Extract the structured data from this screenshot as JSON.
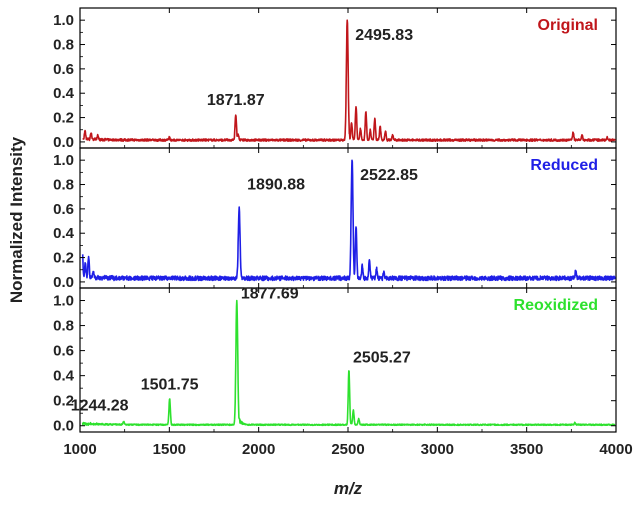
{
  "chart_data": {
    "type": "line",
    "xlabel": "m/z",
    "ylabel": "Normalized Intensity",
    "xlim": [
      1000,
      4000
    ],
    "x_ticks": [
      1000,
      1500,
      2000,
      2500,
      3000,
      3500,
      4000
    ],
    "ylim": [
      -0.05,
      1.1
    ],
    "y_ticks": [
      0.0,
      0.2,
      0.4,
      0.6,
      0.8,
      1.0
    ],
    "y_tick_labels": [
      "0.0",
      "0.2",
      "0.4",
      "0.6",
      "0.8",
      "1.0"
    ],
    "grid": false,
    "legend": "none",
    "panels": [
      {
        "name": "Original",
        "color": "#c0161b",
        "label_position": "top-right",
        "baseline": 0.015,
        "peaks": [
          {
            "mz": 1028,
            "intensity": 0.08
          },
          {
            "mz": 1062,
            "intensity": 0.07
          },
          {
            "mz": 1100,
            "intensity": 0.05
          },
          {
            "mz": 1500,
            "intensity": 0.03
          },
          {
            "mz": 1871.87,
            "intensity": 0.22,
            "label": "1871.87"
          },
          {
            "mz": 1885,
            "intensity": 0.06
          },
          {
            "mz": 2495.83,
            "intensity": 1.0,
            "label": "2495.83"
          },
          {
            "mz": 2520,
            "intensity": 0.15
          },
          {
            "mz": 2545,
            "intensity": 0.28
          },
          {
            "mz": 2570,
            "intensity": 0.1
          },
          {
            "mz": 2600,
            "intensity": 0.24
          },
          {
            "mz": 2625,
            "intensity": 0.09
          },
          {
            "mz": 2650,
            "intensity": 0.18
          },
          {
            "mz": 2680,
            "intensity": 0.12
          },
          {
            "mz": 2710,
            "intensity": 0.08
          },
          {
            "mz": 2750,
            "intensity": 0.05
          },
          {
            "mz": 3760,
            "intensity": 0.07
          },
          {
            "mz": 3810,
            "intensity": 0.05
          },
          {
            "mz": 3950,
            "intensity": 0.03
          }
        ]
      },
      {
        "name": "Reduced",
        "color": "#1f1fe6",
        "label_position": "top-right",
        "baseline": 0.03,
        "peaks": [
          {
            "mz": 1012,
            "intensity": 0.3
          },
          {
            "mz": 1030,
            "intensity": 0.14
          },
          {
            "mz": 1048,
            "intensity": 0.19
          },
          {
            "mz": 1075,
            "intensity": 0.08
          },
          {
            "mz": 1890.88,
            "intensity": 0.59,
            "label": "1890.88"
          },
          {
            "mz": 2522.85,
            "intensity": 1.0,
            "label": "2522.85"
          },
          {
            "mz": 2545,
            "intensity": 0.45
          },
          {
            "mz": 2580,
            "intensity": 0.12
          },
          {
            "mz": 2620,
            "intensity": 0.16
          },
          {
            "mz": 2660,
            "intensity": 0.1
          },
          {
            "mz": 2700,
            "intensity": 0.07
          },
          {
            "mz": 3775,
            "intensity": 0.09
          }
        ]
      },
      {
        "name": "Reoxidized",
        "color": "#2ee12e",
        "label_position": "top-right",
        "baseline": 0.008,
        "peaks": [
          {
            "mz": 1244.28,
            "intensity": 0.03,
            "label": "1244.28"
          },
          {
            "mz": 1501.75,
            "intensity": 0.21,
            "label": "1501.75"
          },
          {
            "mz": 1877.69,
            "intensity": 1.0,
            "label": "1877.69"
          },
          {
            "mz": 2505.27,
            "intensity": 0.44,
            "label": "2505.27"
          },
          {
            "mz": 2530,
            "intensity": 0.12
          },
          {
            "mz": 2560,
            "intensity": 0.05
          },
          {
            "mz": 3770,
            "intensity": 0.02
          }
        ]
      }
    ]
  }
}
